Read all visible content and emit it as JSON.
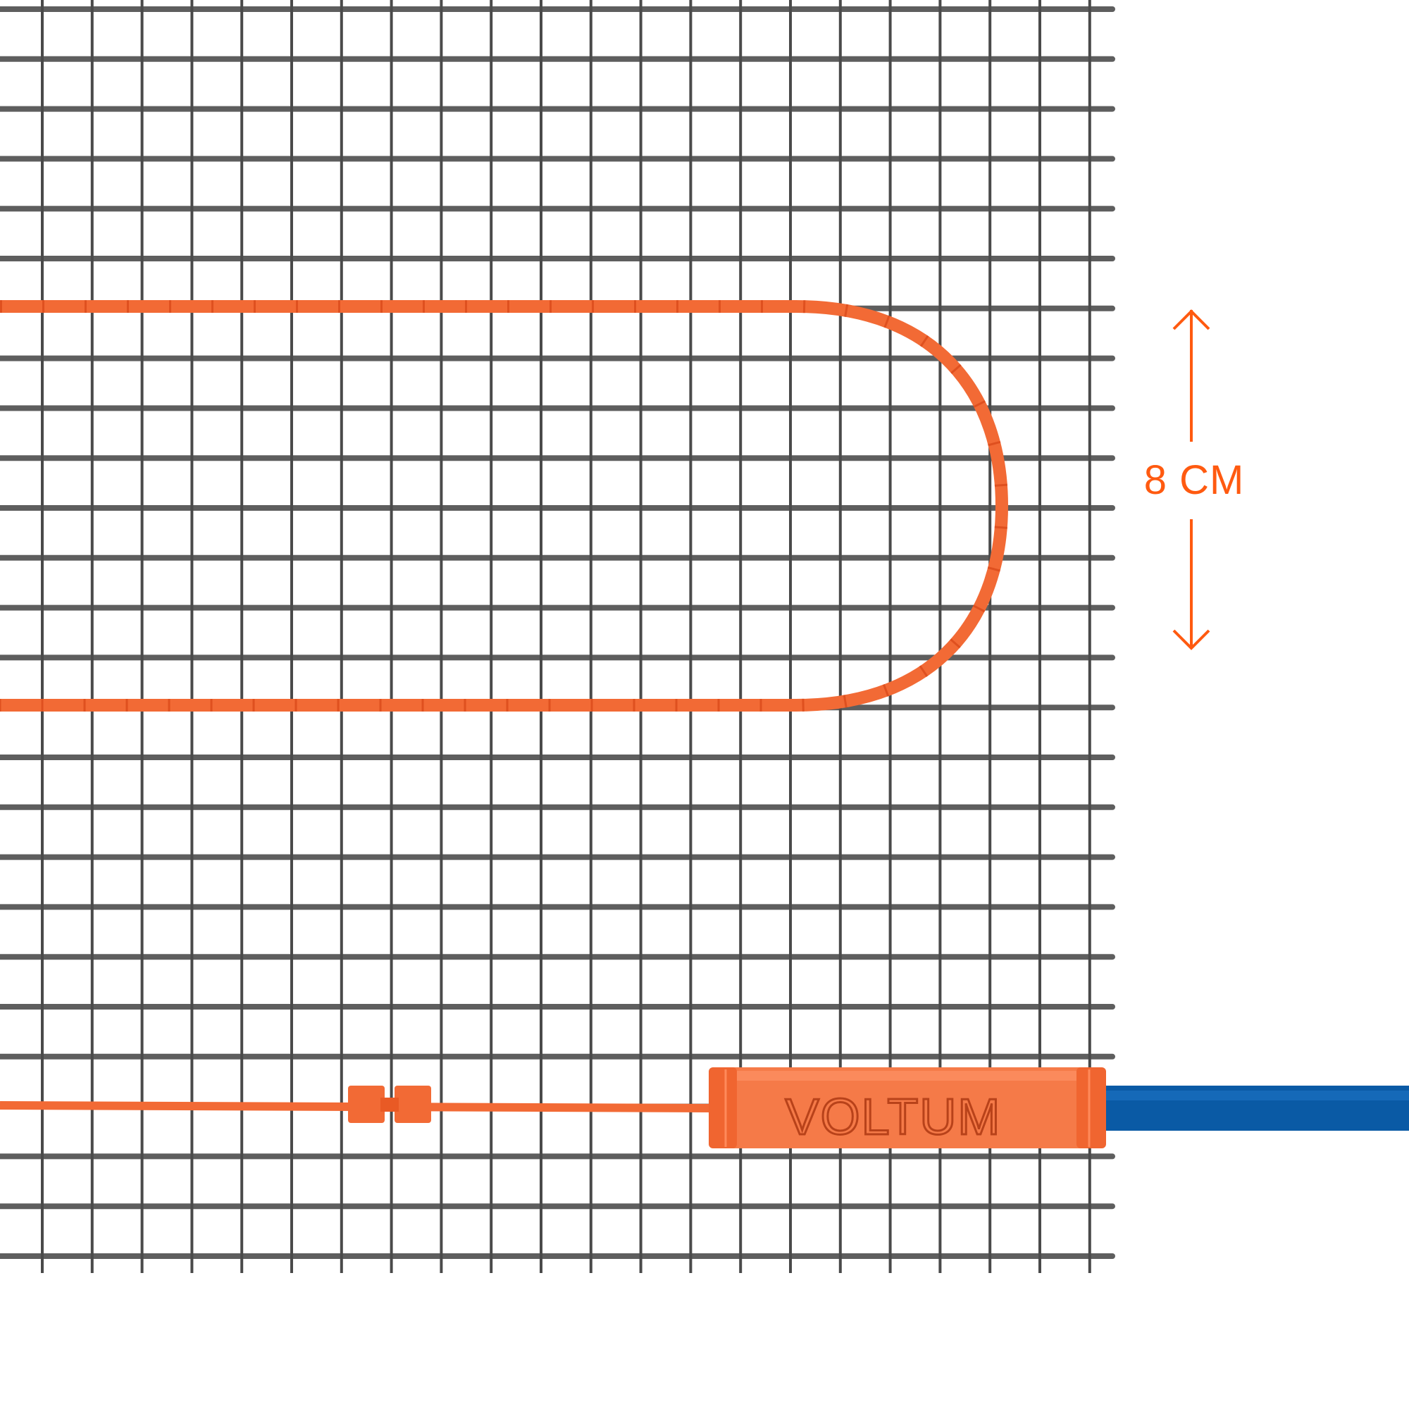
{
  "dimension": {
    "label": "8 CM",
    "color": "#ff5a10"
  },
  "brand": {
    "logo_text": "VOLTUM"
  },
  "colors": {
    "mesh": "#5e5e5e",
    "cable": "#f26a35",
    "cable_stripe": "#d94a1a",
    "connector": "#f57a48",
    "supply_cable": "#0a5aa5",
    "background": "#ffffff"
  },
  "icons": [
    "arrow-up-icon",
    "arrow-down-icon"
  ]
}
